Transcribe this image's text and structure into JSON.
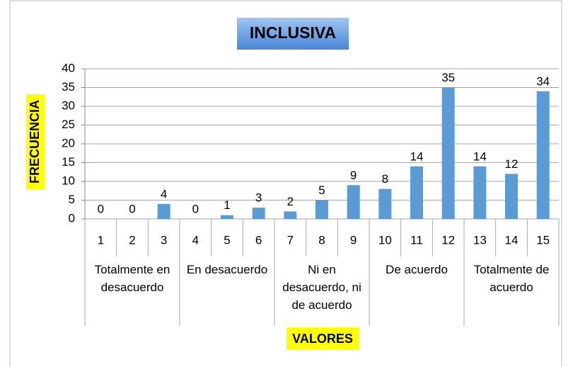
{
  "chart_data": {
    "type": "bar",
    "title": "INCLUSIVA",
    "ylabel": "FRECUENCIA",
    "xlabel": "VALORES",
    "categories": [
      "1",
      "2",
      "3",
      "4",
      "5",
      "6",
      "7",
      "8",
      "9",
      "10",
      "11",
      "12",
      "13",
      "14",
      "15"
    ],
    "values": [
      0,
      0,
      4,
      0,
      1,
      3,
      2,
      5,
      9,
      8,
      14,
      35,
      14,
      12,
      34
    ],
    "groups": [
      "Totalmente en desacuerdo",
      "En desacuerdo",
      "Ni en desacuerdo, ni de acuerdo",
      "De acuerdo",
      "Totalmente de acuerdo"
    ],
    "color": "#5b9bd5",
    "ylim": [
      0,
      40
    ],
    "yticks": [
      0,
      5,
      10,
      15,
      20,
      25,
      30,
      35,
      40
    ],
    "grid": true
  }
}
